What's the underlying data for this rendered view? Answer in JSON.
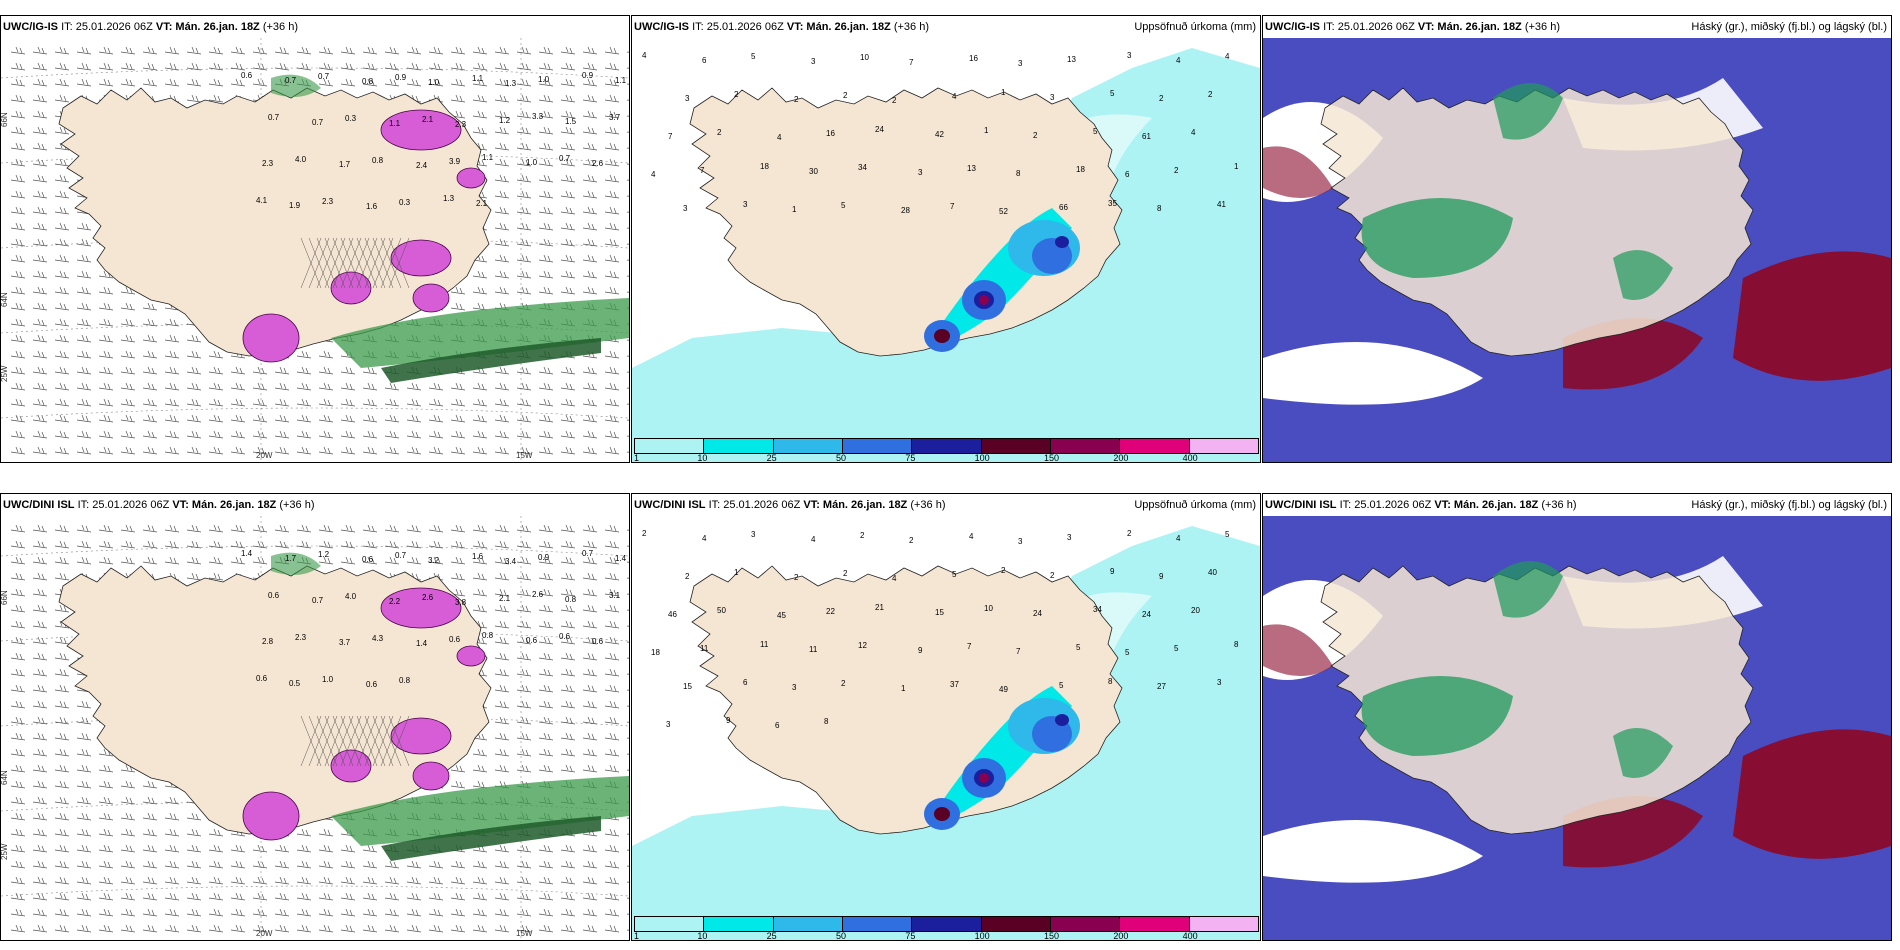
{
  "colors": {
    "land": "#f5e6d3",
    "sea": "#ffffff",
    "precip_light": "#aef3f3",
    "precip_cyan": "#00e8e8",
    "precip_blue": "#2fb8ea",
    "precip_mid": "#2f6fe0",
    "precip_dark": "#1b1f9e",
    "precip_100": "#5a0024",
    "precip_150": "#8a0050",
    "precip_200": "#e0007a",
    "precip_400": "#f3b3f3",
    "cloud_low": "#4a4dbf",
    "cloud_mid": "#1f9a5a",
    "cloud_high": "#8a0a2a",
    "snow_pink": "#d65dd6",
    "green_band": "#3a9a4a"
  },
  "panels": {
    "tl": {
      "model": "UWC/IG-IS",
      "it": "IT: 25.01.2026 06Z",
      "vt": "VT: Mán. 26.jan. 18Z",
      "lead": "(+36 h)",
      "right": ""
    },
    "tm": {
      "model": "UWC/IG-IS",
      "it": "IT: 25.01.2026 06Z",
      "vt": "VT: Mán. 26.jan. 18Z",
      "lead": "(+36 h)",
      "right": "Uppsöfnuð úrkoma (mm)"
    },
    "tr": {
      "model": "UWC/IG-IS",
      "it": "IT: 25.01.2026 06Z",
      "vt": "VT: Mán. 26.jan. 18Z",
      "lead": "(+36 h)",
      "right": "Háský (gr.), miðský (fj.bl.) og lágský (bl.)"
    },
    "bl": {
      "model": "UWC/DINI ISL",
      "it": "IT: 25.01.2026 06Z",
      "vt": "VT: Mán. 26.jan. 18Z",
      "lead": "(+36 h)",
      "right": ""
    },
    "bm": {
      "model": "UWC/DINI ISL",
      "it": "IT: 25.01.2026 06Z",
      "vt": "VT: Mán. 26.jan. 18Z",
      "lead": "(+36 h)",
      "right": "Uppsöfnuð úrkoma (mm)"
    },
    "br": {
      "model": "UWC/DINI ISL",
      "it": "IT: 25.01.2026 06Z",
      "vt": "VT: Mán. 26.jan. 18Z",
      "lead": "(+36 h)",
      "right": "Háský (gr.), miðský (fj.bl.) og lágský (bl.)"
    }
  },
  "axes": {
    "lat66": "66N",
    "lat64": "64N",
    "lon20": "20W",
    "lon15": "15W",
    "lon25": "25W"
  },
  "colorbar_ticks": [
    "1",
    "10",
    "25",
    "50",
    "75",
    "100",
    "150",
    "200",
    "400"
  ],
  "precip_top_labels": [
    "4",
    "6",
    "5",
    "3",
    "10",
    "7",
    "16",
    "3",
    "13",
    "3",
    "4",
    "4",
    "3",
    "2",
    "2",
    "2",
    "2",
    "4",
    "1",
    "3",
    "5",
    "2",
    "2",
    "7",
    "2",
    "4",
    "16",
    "24",
    "42",
    "1",
    "2",
    "5",
    "61",
    "4",
    "4",
    "7",
    "18",
    "30",
    "34",
    "3",
    "13",
    "8",
    "18",
    "6",
    "2",
    "1",
    "3",
    "3",
    "1",
    "5",
    "28",
    "7",
    "52",
    "66",
    "35",
    "8",
    "41"
  ],
  "precip_bot_labels": [
    "2",
    "4",
    "3",
    "4",
    "2",
    "2",
    "4",
    "3",
    "3",
    "2",
    "4",
    "5",
    "2",
    "1",
    "2",
    "2",
    "4",
    "5",
    "2",
    "2",
    "9",
    "9",
    "40",
    "46",
    "50",
    "45",
    "22",
    "21",
    "15",
    "10",
    "24",
    "34",
    "24",
    "20",
    "18",
    "11",
    "11",
    "11",
    "12",
    "9",
    "7",
    "7",
    "5",
    "5",
    "5",
    "8",
    "15",
    "6",
    "3",
    "2",
    "1",
    "37",
    "49",
    "5",
    "8",
    "27",
    "3",
    "3",
    "9",
    "6",
    "8"
  ],
  "snow_top_labels": [
    "0.6",
    "0.7",
    "0.7",
    "0.8",
    "0.9",
    "1.0",
    "1.1",
    "1.3",
    "1.0",
    "0.9",
    "1.1",
    "0.7",
    "0.7",
    "0.3",
    "1.1",
    "2.1",
    "2.3",
    "1.2",
    "3.3",
    "1.5",
    "3.7",
    "2.3",
    "4.0",
    "1.7",
    "0.8",
    "2.4",
    "3.9",
    "1.1",
    "1.0",
    "0.7",
    "2.6",
    "4.1",
    "1.9",
    "2.3",
    "1.6",
    "0.3",
    "1.3",
    "2.1"
  ],
  "snow_bot_labels": [
    "1.4",
    "1.7",
    "1.2",
    "0.6",
    "0.7",
    "3.2",
    "1.6",
    "3.4",
    "0.9",
    "0.7",
    "1.4",
    "0.6",
    "0.7",
    "4.0",
    "2.2",
    "2.6",
    "3.8",
    "2.1",
    "2.6",
    "0.8",
    "3.1",
    "2.8",
    "2.3",
    "3.7",
    "4.3",
    "1.4",
    "0.6",
    "0.8",
    "0.6",
    "0.6",
    "0.6",
    "0.6",
    "0.5",
    "1.0",
    "0.6",
    "0.8"
  ]
}
